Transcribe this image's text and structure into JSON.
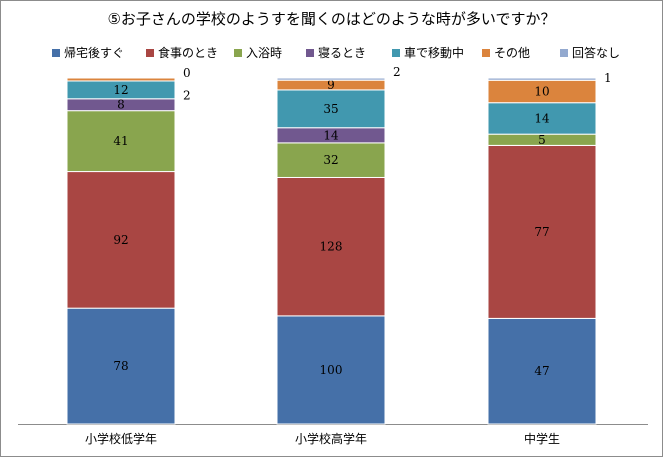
{
  "chart_data": {
    "type": "bar",
    "stacked": true,
    "title": "⑤お子さんの学校のようすを聞くのはどのような時が多いですか？",
    "categories": [
      "小学校低学年",
      "小学校高学年",
      "中学生"
    ],
    "series": [
      {
        "name": "帰宅後すぐ",
        "color": "#4570A8",
        "values": [
          78,
          100,
          47
        ]
      },
      {
        "name": "食事のとき",
        "color": "#A94643",
        "values": [
          92,
          128,
          77
        ]
      },
      {
        "name": "入浴時",
        "color": "#89A54E",
        "values": [
          41,
          32,
          5
        ]
      },
      {
        "name": "寝るとき",
        "color": "#71588F",
        "values": [
          8,
          14,
          0
        ]
      },
      {
        "name": "車で移動中",
        "color": "#4198AF",
        "values": [
          12,
          35,
          14
        ]
      },
      {
        "name": "その他",
        "color": "#DB843D",
        "values": [
          2,
          9,
          10
        ]
      },
      {
        "name": "回答なし",
        "color": "#93A9CF",
        "values": [
          0,
          2,
          1
        ]
      }
    ],
    "legend_position": "top",
    "grid": false
  }
}
